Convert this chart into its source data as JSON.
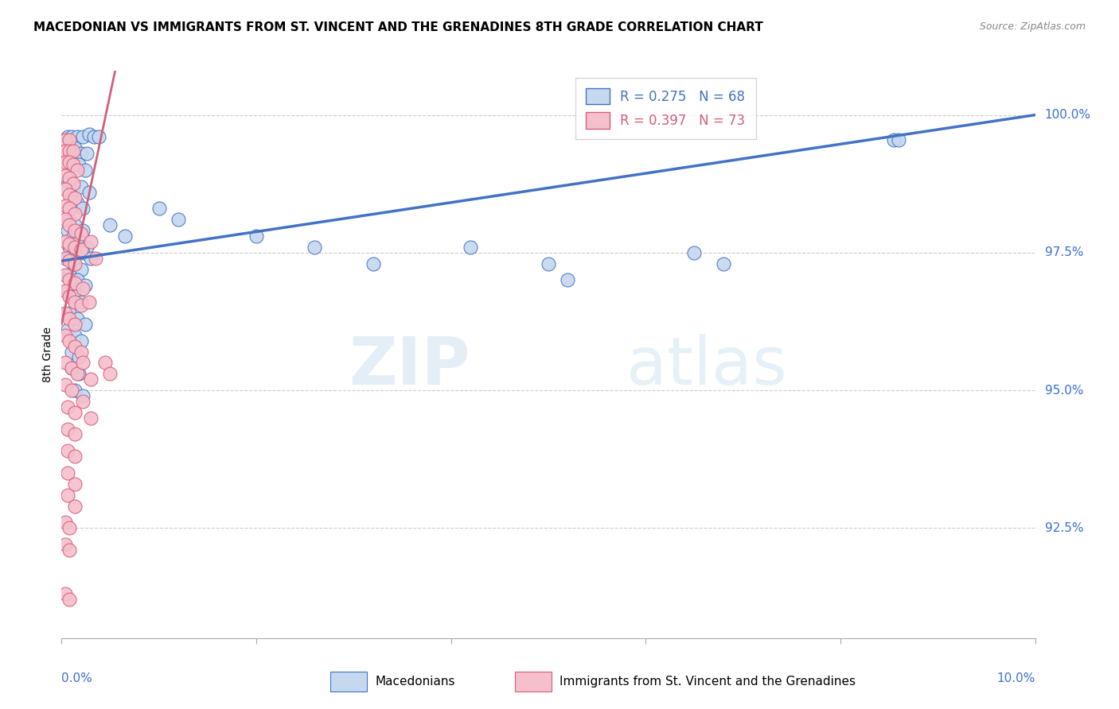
{
  "title": "MACEDONIAN VS IMMIGRANTS FROM ST. VINCENT AND THE GRENADINES 8TH GRADE CORRELATION CHART",
  "source": "Source: ZipAtlas.com",
  "ytick_values": [
    92.5,
    95.0,
    97.5,
    100.0
  ],
  "xlim": [
    0.0,
    10.0
  ],
  "ylim": [
    90.5,
    100.8
  ],
  "legend_blue_r": "R = 0.275",
  "legend_blue_n": "N = 68",
  "legend_pink_r": "R = 0.397",
  "legend_pink_n": "N = 73",
  "watermark_zip": "ZIP",
  "watermark_atlas": "atlas",
  "blue_color": "#c5d8f0",
  "pink_color": "#f5bfcc",
  "line_blue": "#4472c4",
  "line_pink": "#d45f7a",
  "blue_line_x": [
    0.0,
    10.0
  ],
  "blue_line_y": [
    97.35,
    100.0
  ],
  "pink_line_x": [
    0.0,
    0.55
  ],
  "pink_line_y": [
    96.2,
    100.8
  ],
  "blue_scatter": [
    [
      0.06,
      99.6
    ],
    [
      0.1,
      99.6
    ],
    [
      0.16,
      99.6
    ],
    [
      0.22,
      99.6
    ],
    [
      0.28,
      99.65
    ],
    [
      0.33,
      99.6
    ],
    [
      0.38,
      99.6
    ],
    [
      0.14,
      99.4
    ],
    [
      0.2,
      99.3
    ],
    [
      0.26,
      99.3
    ],
    [
      0.08,
      99.2
    ],
    [
      0.18,
      99.1
    ],
    [
      0.24,
      99.0
    ],
    [
      0.06,
      98.8
    ],
    [
      0.12,
      98.7
    ],
    [
      0.2,
      98.7
    ],
    [
      0.28,
      98.6
    ],
    [
      0.1,
      98.5
    ],
    [
      0.16,
      98.4
    ],
    [
      0.22,
      98.3
    ],
    [
      0.08,
      98.1
    ],
    [
      0.14,
      98.0
    ],
    [
      0.22,
      97.9
    ],
    [
      0.06,
      97.9
    ],
    [
      0.12,
      97.8
    ],
    [
      0.18,
      97.7
    ],
    [
      0.26,
      97.6
    ],
    [
      0.08,
      97.6
    ],
    [
      0.16,
      97.5
    ],
    [
      0.22,
      97.5
    ],
    [
      0.3,
      97.4
    ],
    [
      0.06,
      97.4
    ],
    [
      0.12,
      97.3
    ],
    [
      0.2,
      97.2
    ],
    [
      0.08,
      97.1
    ],
    [
      0.16,
      97.0
    ],
    [
      0.24,
      96.9
    ],
    [
      0.06,
      96.8
    ],
    [
      0.14,
      96.7
    ],
    [
      0.2,
      96.6
    ],
    [
      0.08,
      96.4
    ],
    [
      0.16,
      96.3
    ],
    [
      0.24,
      96.2
    ],
    [
      0.06,
      96.1
    ],
    [
      0.14,
      96.0
    ],
    [
      0.2,
      95.9
    ],
    [
      0.1,
      95.7
    ],
    [
      0.18,
      95.6
    ],
    [
      0.1,
      95.4
    ],
    [
      0.18,
      95.3
    ],
    [
      0.14,
      95.0
    ],
    [
      0.22,
      94.9
    ],
    [
      0.5,
      98.0
    ],
    [
      0.65,
      97.8
    ],
    [
      1.0,
      98.3
    ],
    [
      1.2,
      98.1
    ],
    [
      2.0,
      97.8
    ],
    [
      2.6,
      97.6
    ],
    [
      3.2,
      97.3
    ],
    [
      4.2,
      97.6
    ],
    [
      5.0,
      97.3
    ],
    [
      5.2,
      97.0
    ],
    [
      6.5,
      97.5
    ],
    [
      6.8,
      97.3
    ],
    [
      8.55,
      99.55
    ],
    [
      8.6,
      99.55
    ]
  ],
  "pink_scatter": [
    [
      0.04,
      99.55
    ],
    [
      0.08,
      99.55
    ],
    [
      0.04,
      99.35
    ],
    [
      0.08,
      99.35
    ],
    [
      0.12,
      99.35
    ],
    [
      0.04,
      99.15
    ],
    [
      0.08,
      99.15
    ],
    [
      0.12,
      99.1
    ],
    [
      0.16,
      99.0
    ],
    [
      0.04,
      98.9
    ],
    [
      0.08,
      98.85
    ],
    [
      0.12,
      98.75
    ],
    [
      0.04,
      98.65
    ],
    [
      0.08,
      98.55
    ],
    [
      0.14,
      98.5
    ],
    [
      0.04,
      98.35
    ],
    [
      0.08,
      98.3
    ],
    [
      0.14,
      98.2
    ],
    [
      0.04,
      98.1
    ],
    [
      0.08,
      98.0
    ],
    [
      0.14,
      97.9
    ],
    [
      0.2,
      97.85
    ],
    [
      0.04,
      97.7
    ],
    [
      0.08,
      97.65
    ],
    [
      0.14,
      97.6
    ],
    [
      0.2,
      97.55
    ],
    [
      0.04,
      97.4
    ],
    [
      0.08,
      97.35
    ],
    [
      0.14,
      97.3
    ],
    [
      0.04,
      97.1
    ],
    [
      0.08,
      97.0
    ],
    [
      0.14,
      96.95
    ],
    [
      0.04,
      96.8
    ],
    [
      0.08,
      96.7
    ],
    [
      0.14,
      96.6
    ],
    [
      0.2,
      96.55
    ],
    [
      0.04,
      96.4
    ],
    [
      0.08,
      96.3
    ],
    [
      0.14,
      96.2
    ],
    [
      0.04,
      96.0
    ],
    [
      0.08,
      95.9
    ],
    [
      0.14,
      95.8
    ],
    [
      0.2,
      95.7
    ],
    [
      0.04,
      95.5
    ],
    [
      0.1,
      95.4
    ],
    [
      0.16,
      95.3
    ],
    [
      0.04,
      95.1
    ],
    [
      0.1,
      95.0
    ],
    [
      0.06,
      94.7
    ],
    [
      0.14,
      94.6
    ],
    [
      0.06,
      94.3
    ],
    [
      0.14,
      94.2
    ],
    [
      0.06,
      93.9
    ],
    [
      0.14,
      93.8
    ],
    [
      0.06,
      93.5
    ],
    [
      0.14,
      93.3
    ],
    [
      0.06,
      93.1
    ],
    [
      0.14,
      92.9
    ],
    [
      0.04,
      92.6
    ],
    [
      0.08,
      92.5
    ],
    [
      0.04,
      92.2
    ],
    [
      0.08,
      92.1
    ],
    [
      0.04,
      91.3
    ],
    [
      0.08,
      91.2
    ],
    [
      0.3,
      97.7
    ],
    [
      0.35,
      97.4
    ],
    [
      0.22,
      96.85
    ],
    [
      0.28,
      96.6
    ],
    [
      0.22,
      95.5
    ],
    [
      0.3,
      95.2
    ],
    [
      0.22,
      94.8
    ],
    [
      0.3,
      94.5
    ],
    [
      0.45,
      95.5
    ],
    [
      0.5,
      95.3
    ]
  ]
}
